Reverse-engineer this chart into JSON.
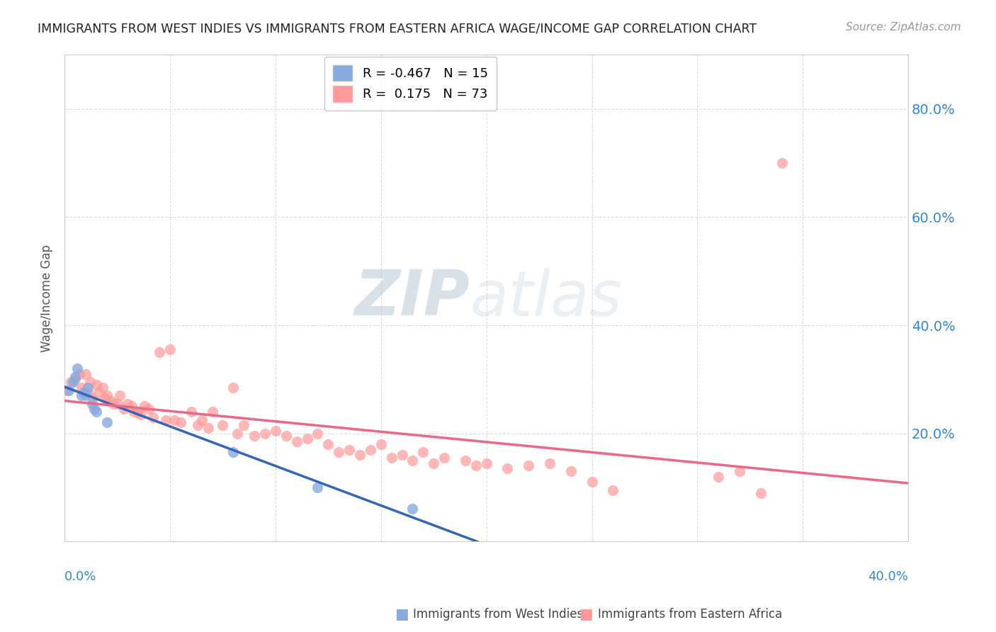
{
  "title": "IMMIGRANTS FROM WEST INDIES VS IMMIGRANTS FROM EASTERN AFRICA WAGE/INCOME GAP CORRELATION CHART",
  "source": "Source: ZipAtlas.com",
  "ylabel": "Wage/Income Gap",
  "watermark_zip": "ZIP",
  "watermark_atlas": "atlas",
  "legend_blue_r": "-0.467",
  "legend_blue_n": "15",
  "legend_pink_r": "0.175",
  "legend_pink_n": "73",
  "blue_color": "#88AADD",
  "pink_color": "#FF9999",
  "blue_line_color": "#3366BB",
  "pink_line_color": "#EE6688",
  "xlim": [
    0.0,
    0.4
  ],
  "ylim": [
    0.0,
    0.9
  ],
  "right_yticks": [
    0.0,
    0.2,
    0.4,
    0.6,
    0.8
  ],
  "right_yticklabels": [
    "",
    "20.0%",
    "40.0%",
    "60.0%",
    "80.0%"
  ],
  "grid_color": "#DDDDDD",
  "background_color": "#FFFFFF",
  "blue_x": [
    0.002,
    0.004,
    0.005,
    0.006,
    0.008,
    0.009,
    0.01,
    0.011,
    0.013,
    0.014,
    0.015,
    0.02,
    0.08,
    0.12,
    0.165
  ],
  "blue_y": [
    0.28,
    0.295,
    0.305,
    0.32,
    0.27,
    0.275,
    0.27,
    0.285,
    0.255,
    0.245,
    0.24,
    0.22,
    0.165,
    0.1,
    0.06
  ],
  "pink_x": [
    0.001,
    0.003,
    0.005,
    0.007,
    0.008,
    0.01,
    0.011,
    0.012,
    0.013,
    0.015,
    0.016,
    0.018,
    0.019,
    0.02,
    0.022,
    0.023,
    0.025,
    0.026,
    0.028,
    0.03,
    0.032,
    0.033,
    0.035,
    0.036,
    0.038,
    0.04,
    0.042,
    0.045,
    0.048,
    0.05,
    0.052,
    0.055,
    0.06,
    0.063,
    0.065,
    0.068,
    0.07,
    0.075,
    0.08,
    0.082,
    0.085,
    0.09,
    0.095,
    0.1,
    0.105,
    0.11,
    0.115,
    0.12,
    0.125,
    0.13,
    0.135,
    0.14,
    0.145,
    0.15,
    0.155,
    0.16,
    0.165,
    0.17,
    0.175,
    0.18,
    0.19,
    0.195,
    0.2,
    0.21,
    0.22,
    0.23,
    0.24,
    0.25,
    0.26,
    0.31,
    0.32,
    0.33,
    0.34
  ],
  "pink_y": [
    0.28,
    0.295,
    0.3,
    0.31,
    0.285,
    0.31,
    0.275,
    0.295,
    0.265,
    0.29,
    0.275,
    0.285,
    0.265,
    0.27,
    0.26,
    0.255,
    0.255,
    0.27,
    0.245,
    0.255,
    0.25,
    0.24,
    0.24,
    0.235,
    0.25,
    0.245,
    0.23,
    0.35,
    0.225,
    0.355,
    0.225,
    0.22,
    0.24,
    0.215,
    0.225,
    0.21,
    0.24,
    0.215,
    0.285,
    0.2,
    0.215,
    0.195,
    0.2,
    0.205,
    0.195,
    0.185,
    0.19,
    0.2,
    0.18,
    0.165,
    0.17,
    0.16,
    0.17,
    0.18,
    0.155,
    0.16,
    0.15,
    0.165,
    0.145,
    0.155,
    0.15,
    0.14,
    0.145,
    0.135,
    0.14,
    0.145,
    0.13,
    0.11,
    0.095,
    0.12,
    0.13,
    0.09,
    0.7
  ]
}
